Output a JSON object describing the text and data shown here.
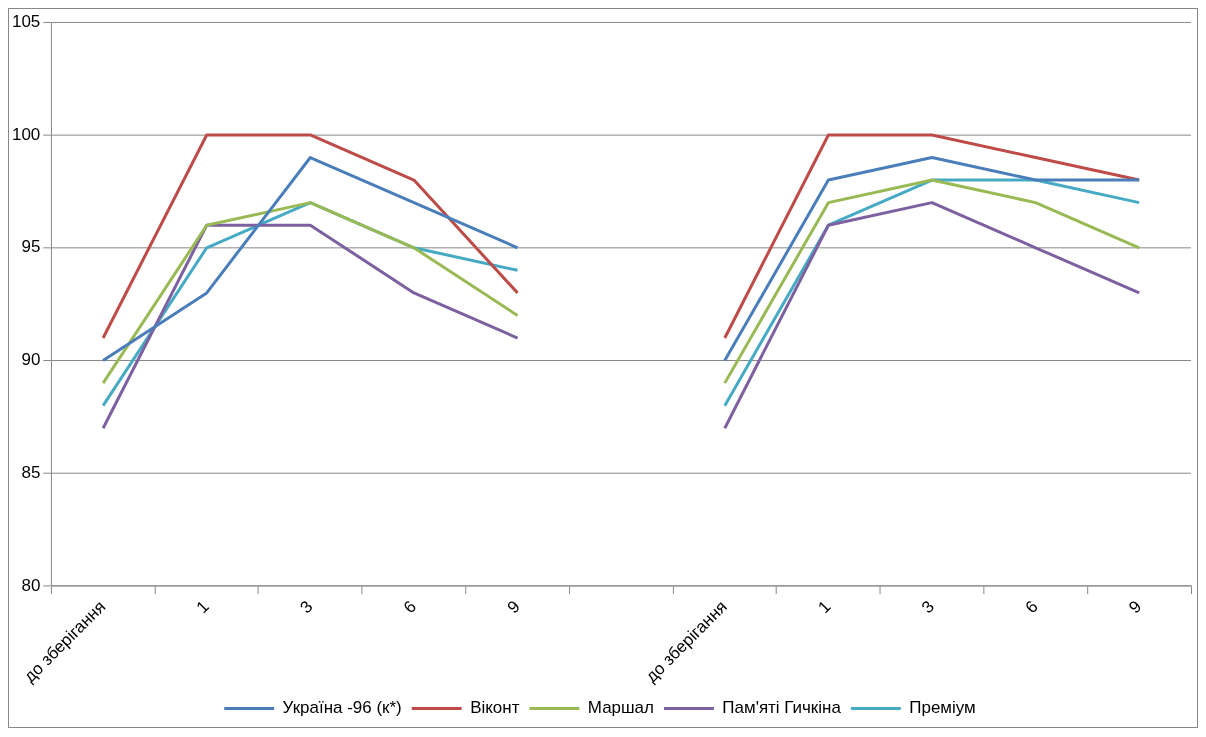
{
  "chart_data": {
    "type": "line",
    "categories": [
      "до зберігання",
      "1",
      "3",
      "6",
      "9",
      null,
      "до зберігання",
      "1",
      "3",
      "6",
      "9"
    ],
    "series": [
      {
        "name": "Україна -96 (к*)",
        "color": "#4a7ebb",
        "values": [
          90,
          93,
          99,
          97,
          95,
          null,
          90,
          98,
          99,
          98,
          98
        ]
      },
      {
        "name": "Віконт",
        "color": "#be4b48",
        "values": [
          91,
          100,
          100,
          98,
          93,
          null,
          91,
          100,
          100,
          99,
          98
        ]
      },
      {
        "name": "Маршал",
        "color": "#98b954",
        "values": [
          89,
          96,
          97,
          95,
          92,
          null,
          89,
          97,
          98,
          97,
          95
        ]
      },
      {
        "name": "Пам'яті Гичкіна",
        "color": "#7d60a0",
        "values": [
          87,
          96,
          96,
          93,
          91,
          null,
          87,
          96,
          97,
          95,
          93
        ]
      },
      {
        "name": "Преміум",
        "color": "#46aac5",
        "values": [
          88,
          95,
          97,
          95,
          94,
          null,
          88,
          96,
          98,
          98,
          97
        ]
      }
    ],
    "ylim": [
      80,
      105
    ],
    "yticks": [
      80,
      85,
      90,
      95,
      100,
      105
    ],
    "grid": "y",
    "legend": "bottom",
    "marker": "none",
    "line_style": "solid"
  }
}
